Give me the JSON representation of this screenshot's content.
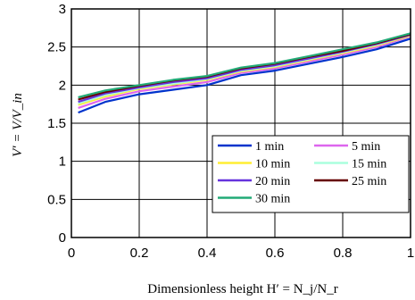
{
  "chart_data": {
    "type": "line",
    "title": "",
    "xlabel": "Dimensionless height H′ = N_j/N_r",
    "ylabel": "V′ = V/V_in",
    "xlim": [
      0,
      1
    ],
    "ylim": [
      0,
      3
    ],
    "xticks": [
      "0",
      "0.2",
      "0.4",
      "0.6",
      "0.8",
      "1"
    ],
    "yticks": [
      "0",
      "0.5",
      "1",
      "1.5",
      "2",
      "2.5",
      "3"
    ],
    "grid": true,
    "legend_position": "lower-right",
    "x": [
      0.02,
      0.1,
      0.2,
      0.3,
      0.4,
      0.5,
      0.6,
      0.7,
      0.8,
      0.9,
      1.0
    ],
    "series": [
      {
        "name": "1 min",
        "color": "#0033cc",
        "values": [
          1.64,
          1.78,
          1.88,
          1.94,
          2.0,
          2.13,
          2.19,
          2.28,
          2.37,
          2.47,
          2.61
        ]
      },
      {
        "name": "5 min",
        "color": "#dd66ee",
        "values": [
          1.7,
          1.82,
          1.92,
          1.98,
          2.04,
          2.16,
          2.22,
          2.31,
          2.4,
          2.5,
          2.64
        ]
      },
      {
        "name": "10 min",
        "color": "#ffee33",
        "values": [
          1.74,
          1.85,
          1.95,
          2.01,
          2.07,
          2.18,
          2.24,
          2.33,
          2.42,
          2.52,
          2.65
        ]
      },
      {
        "name": "15 min",
        "color": "#aaffdd",
        "values": [
          1.76,
          1.87,
          1.96,
          2.02,
          2.08,
          2.19,
          2.25,
          2.34,
          2.43,
          2.53,
          2.66
        ]
      },
      {
        "name": "20 min",
        "color": "#6633dd",
        "values": [
          1.78,
          1.89,
          1.97,
          2.04,
          2.09,
          2.2,
          2.26,
          2.35,
          2.44,
          2.54,
          2.66
        ]
      },
      {
        "name": "25 min",
        "color": "#660000",
        "values": [
          1.81,
          1.91,
          1.99,
          2.06,
          2.11,
          2.22,
          2.28,
          2.37,
          2.45,
          2.55,
          2.67
        ]
      },
      {
        "name": "30 min",
        "color": "#22aa77",
        "values": [
          1.84,
          1.93,
          2.0,
          2.07,
          2.12,
          2.23,
          2.29,
          2.38,
          2.47,
          2.56,
          2.68
        ]
      }
    ]
  }
}
